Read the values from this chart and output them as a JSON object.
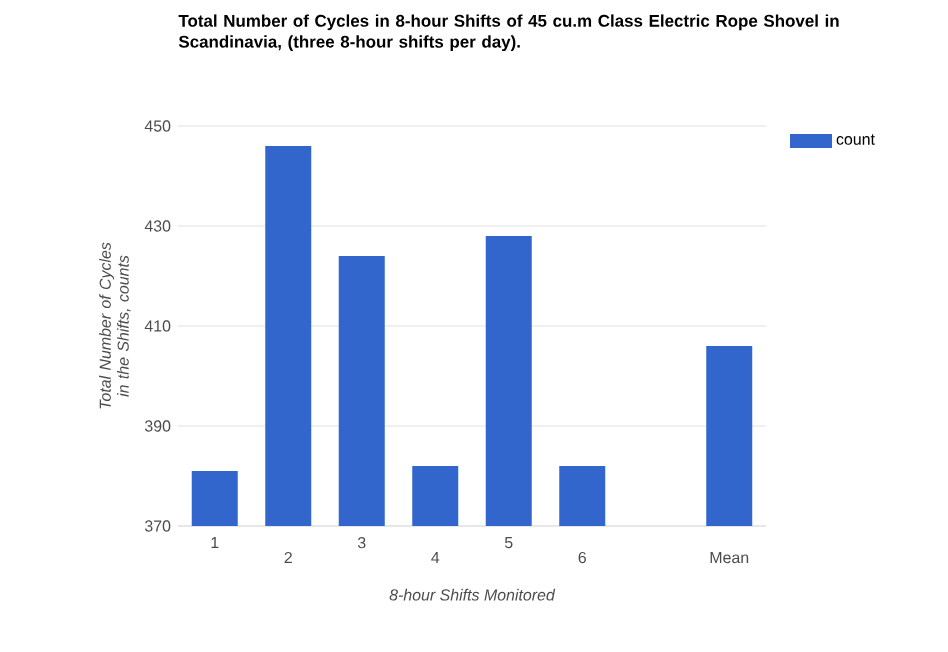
{
  "chart_data": {
    "type": "bar",
    "title": "Total Number of Cycles in 8-hour Shifts of 45 cu.m Class Electric Rope Shovel in Scandinavia, (three 8-hour shifts per day).",
    "xlabel": "8-hour Shifts Monitored",
    "ylabel": "Total Number of Cycles in the Shifts, counts",
    "categories": [
      "1",
      "2",
      "3",
      "4",
      "5",
      "6",
      null,
      "Mean"
    ],
    "series": [
      {
        "name": "count",
        "color": "#3366cc",
        "values": [
          381,
          446,
          424,
          382,
          428,
          382,
          null,
          406
        ]
      }
    ],
    "ylim": [
      370,
      450
    ],
    "yticks": [
      370,
      390,
      410,
      430,
      450
    ],
    "grid": "y",
    "legend": "top right"
  }
}
